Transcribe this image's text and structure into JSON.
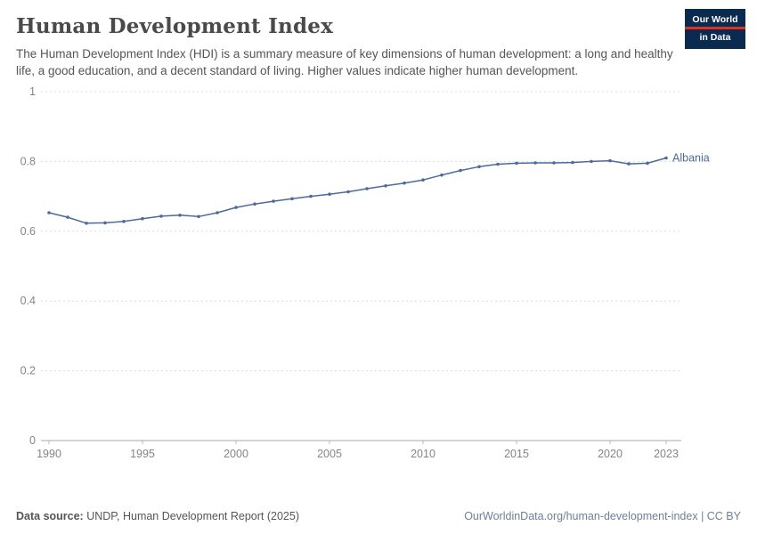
{
  "header": {
    "title": "Human Development Index",
    "subtitle": "The Human Development Index (HDI) is a summary measure of key dimensions of human development: a long and healthy life, a good education, and a decent standard of living. Higher values indicate higher human development.",
    "logo": {
      "line1": "Our World",
      "line2": "in Data"
    }
  },
  "chart_data": {
    "type": "line",
    "title": "Human Development Index",
    "xlabel": "",
    "ylabel": "",
    "xlim": [
      1990,
      2023
    ],
    "ylim": [
      0,
      1
    ],
    "xticks": [
      1990,
      1995,
      2000,
      2005,
      2010,
      2015,
      2020,
      2023
    ],
    "yticks": [
      0,
      0.2,
      0.4,
      0.6,
      0.8,
      1
    ],
    "grid": "horizontal-dashed",
    "legend": "end-of-line-label",
    "series": [
      {
        "name": "Albania",
        "color": "#4c6a9c",
        "x": [
          1990,
          1991,
          1992,
          1993,
          1994,
          1995,
          1996,
          1997,
          1998,
          1999,
          2000,
          2001,
          2002,
          2003,
          2004,
          2005,
          2006,
          2007,
          2008,
          2009,
          2010,
          2011,
          2012,
          2013,
          2014,
          2015,
          2016,
          2017,
          2018,
          2019,
          2020,
          2021,
          2022,
          2023
        ],
        "values": [
          0.653,
          0.64,
          0.623,
          0.624,
          0.628,
          0.636,
          0.643,
          0.646,
          0.642,
          0.653,
          0.668,
          0.678,
          0.686,
          0.693,
          0.7,
          0.706,
          0.713,
          0.722,
          0.73,
          0.738,
          0.747,
          0.761,
          0.774,
          0.785,
          0.792,
          0.795,
          0.796,
          0.796,
          0.797,
          0.8,
          0.802,
          0.793,
          0.795,
          0.81
        ]
      }
    ]
  },
  "footer": {
    "source_label": "Data source:",
    "source_text": " UNDP, Human Development Report (2025)",
    "credit": "OurWorldinData.org/human-development-index | CC BY"
  }
}
